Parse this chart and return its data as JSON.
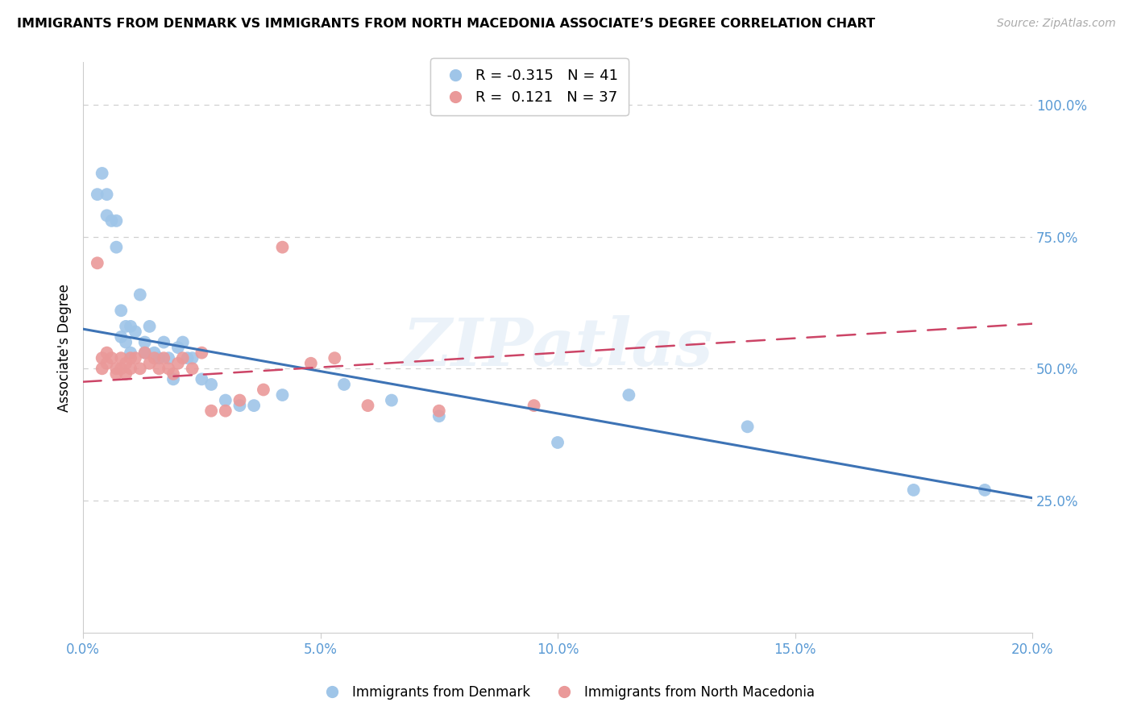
{
  "title": "IMMIGRANTS FROM DENMARK VS IMMIGRANTS FROM NORTH MACEDONIA ASSOCIATE’S DEGREE CORRELATION CHART",
  "source": "Source: ZipAtlas.com",
  "ylabel": "Associate's Degree",
  "legend_label_blue": "Immigrants from Denmark",
  "legend_label_pink": "Immigrants from North Macedonia",
  "R_blue": -0.315,
  "N_blue": 41,
  "R_pink": 0.121,
  "N_pink": 37,
  "xlim": [
    0.0,
    0.2
  ],
  "ylim": [
    0.0,
    1.08
  ],
  "yticks": [
    0.25,
    0.5,
    0.75,
    1.0
  ],
  "xticks": [
    0.0,
    0.05,
    0.1,
    0.15,
    0.2
  ],
  "color_blue": "#9fc5e8",
  "color_pink": "#ea9999",
  "color_blue_line": "#3d73b5",
  "color_pink_line": "#cc4466",
  "watermark_text": "ZIPatlas",
  "blue_x": [
    0.003,
    0.004,
    0.005,
    0.005,
    0.006,
    0.007,
    0.007,
    0.008,
    0.008,
    0.009,
    0.009,
    0.01,
    0.01,
    0.011,
    0.012,
    0.013,
    0.013,
    0.014,
    0.015,
    0.016,
    0.017,
    0.018,
    0.019,
    0.02,
    0.021,
    0.022,
    0.023,
    0.025,
    0.027,
    0.03,
    0.033,
    0.036,
    0.042,
    0.055,
    0.065,
    0.075,
    0.1,
    0.115,
    0.14,
    0.175,
    0.19
  ],
  "blue_y": [
    0.83,
    0.87,
    0.83,
    0.79,
    0.78,
    0.78,
    0.73,
    0.61,
    0.56,
    0.58,
    0.55,
    0.58,
    0.53,
    0.57,
    0.64,
    0.55,
    0.53,
    0.58,
    0.53,
    0.52,
    0.55,
    0.52,
    0.48,
    0.54,
    0.55,
    0.52,
    0.52,
    0.48,
    0.47,
    0.44,
    0.43,
    0.43,
    0.45,
    0.47,
    0.44,
    0.41,
    0.36,
    0.45,
    0.39,
    0.27,
    0.27
  ],
  "pink_x": [
    0.003,
    0.004,
    0.004,
    0.005,
    0.005,
    0.006,
    0.007,
    0.007,
    0.008,
    0.008,
    0.009,
    0.009,
    0.01,
    0.01,
    0.011,
    0.012,
    0.013,
    0.014,
    0.015,
    0.016,
    0.017,
    0.018,
    0.019,
    0.02,
    0.021,
    0.023,
    0.025,
    0.027,
    0.03,
    0.033,
    0.038,
    0.042,
    0.048,
    0.053,
    0.06,
    0.075,
    0.095
  ],
  "pink_y": [
    0.7,
    0.52,
    0.5,
    0.53,
    0.51,
    0.52,
    0.5,
    0.49,
    0.52,
    0.5,
    0.51,
    0.49,
    0.52,
    0.5,
    0.52,
    0.5,
    0.53,
    0.51,
    0.52,
    0.5,
    0.52,
    0.5,
    0.49,
    0.51,
    0.52,
    0.5,
    0.53,
    0.42,
    0.42,
    0.44,
    0.46,
    0.73,
    0.51,
    0.52,
    0.43,
    0.42,
    0.43
  ],
  "blue_line_x0": 0.0,
  "blue_line_x1": 0.2,
  "blue_line_y0": 0.575,
  "blue_line_y1": 0.255,
  "pink_line_x0": 0.0,
  "pink_line_x1": 0.2,
  "pink_line_y0": 0.475,
  "pink_line_y1": 0.585
}
